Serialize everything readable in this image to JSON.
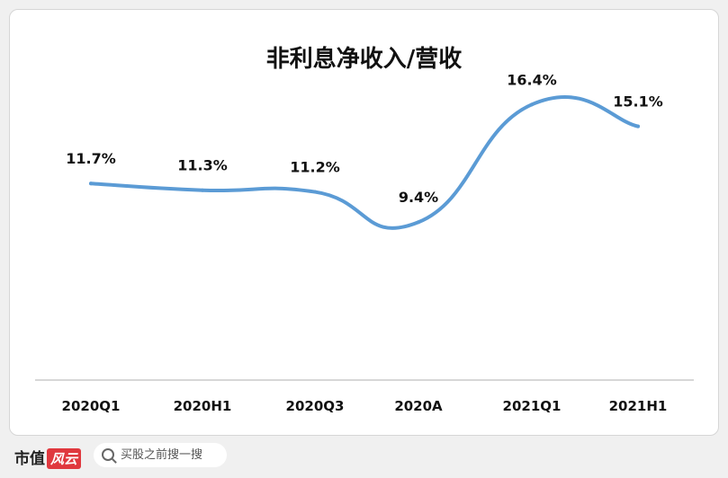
{
  "chart_data": {
    "type": "line",
    "title": "非利息净收入/营收",
    "categories": [
      "2020Q1",
      "2020H1",
      "2020Q3",
      "2020A",
      "2021Q1",
      "2021H1"
    ],
    "values": [
      11.7,
      11.3,
      11.2,
      9.4,
      16.4,
      15.1
    ],
    "data_labels": [
      "11.7%",
      "11.3%",
      "11.2%",
      "9.4%",
      "16.4%",
      "15.1%"
    ],
    "line_color": "#5b9bd5",
    "ylim": [
      0,
      20
    ],
    "grid": false,
    "legend": "none"
  },
  "footer": {
    "brand": "市值",
    "brand_accent": "风云",
    "search_placeholder": "买股之前搜一搜"
  }
}
